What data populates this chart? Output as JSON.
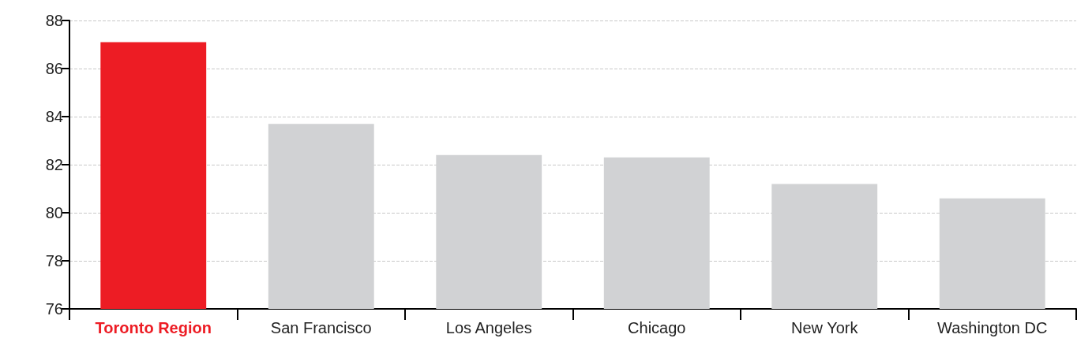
{
  "chart_data": {
    "type": "bar",
    "categories": [
      "Toronto Region",
      "San Francisco",
      "Los Angeles",
      "Chicago",
      "New York",
      "Washington DC"
    ],
    "values": [
      87.1,
      83.7,
      82.4,
      82.3,
      81.2,
      80.6
    ],
    "colors": [
      "#ed1c24",
      "#d1d2d4",
      "#d1d2d4",
      "#d1d2d4",
      "#d1d2d4",
      "#d1d2d4"
    ],
    "ylim": [
      76,
      88
    ],
    "yticks": [
      76,
      78,
      80,
      82,
      84,
      86,
      88
    ],
    "grid": "y"
  }
}
